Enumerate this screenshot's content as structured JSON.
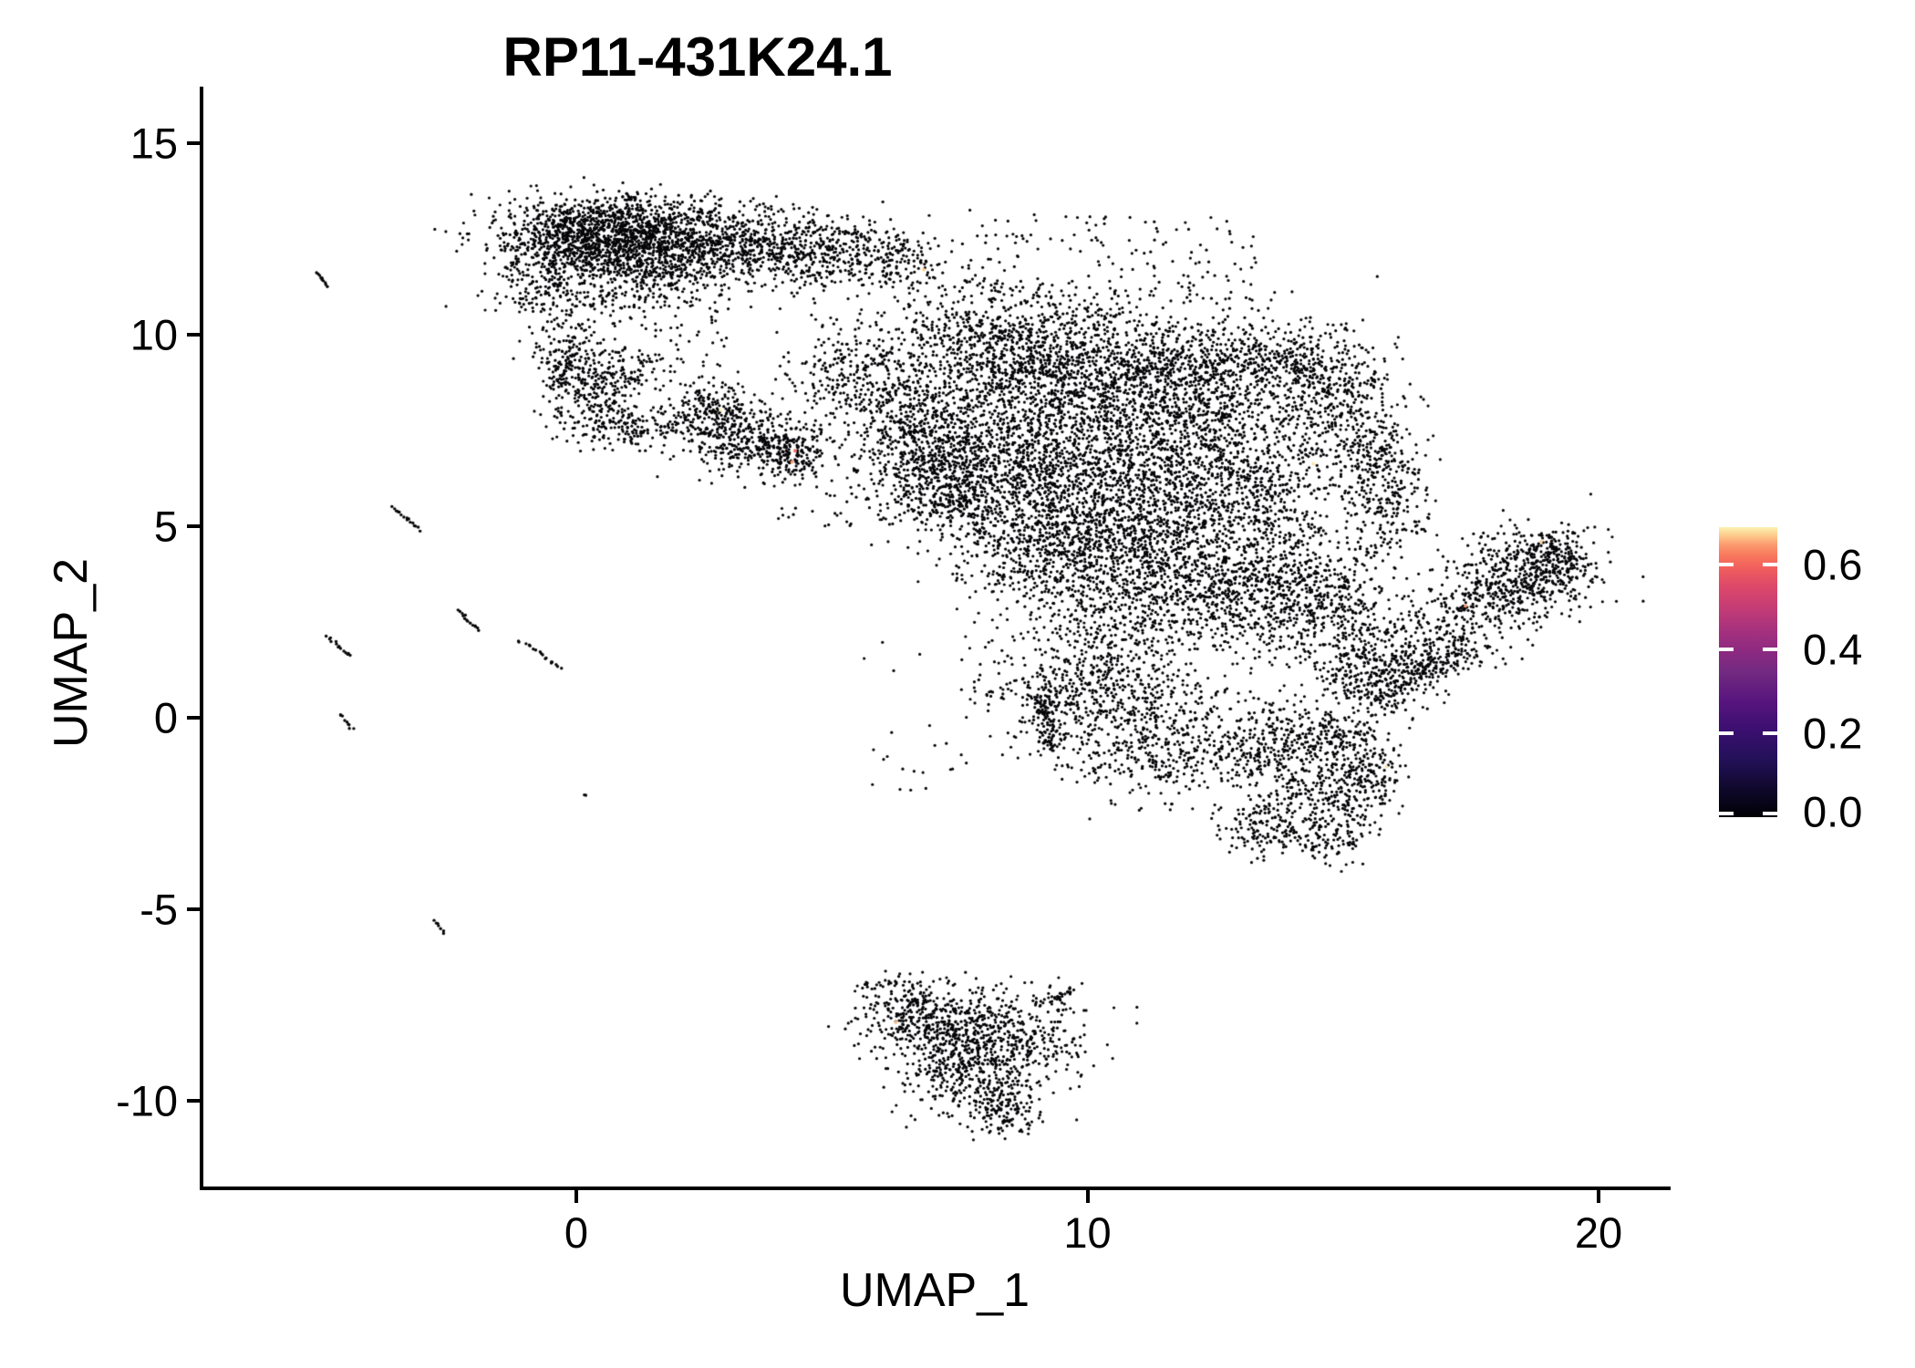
{
  "chart_data": {
    "type": "scatter",
    "title": "RP11-431K24.1",
    "xlabel": "UMAP_1",
    "ylabel": "UMAP_2",
    "xlim": [
      -7.3,
      21.4
    ],
    "ylim": [
      -12.3,
      16.5
    ],
    "xticks": [
      0,
      10,
      20
    ],
    "yticks": [
      15,
      10,
      5,
      0,
      -5,
      -10
    ],
    "grid": false,
    "point_color": "#050508",
    "legend": {
      "position": "right",
      "ticks": [
        0.0,
        0.2,
        0.4,
        0.6
      ],
      "range": [
        0,
        0.69
      ],
      "palette": "magma",
      "palette_stops": [
        "#000004",
        "#140e36",
        "#3b0f70",
        "#641a80",
        "#8c2981",
        "#b73779",
        "#de4968",
        "#f1605d",
        "#fb9b6f",
        "#fdc98a",
        "#fcfdbf"
      ]
    },
    "clusters": [
      {
        "type": "blob",
        "x": 0.3,
        "y": 12.6,
        "sx": 0.9,
        "sy": 0.45,
        "n": 900
      },
      {
        "type": "blob",
        "x": 1.5,
        "y": 12.2,
        "sx": 1.0,
        "sy": 0.5,
        "n": 700
      },
      {
        "type": "blob",
        "x": 1.2,
        "y": 13.2,
        "sx": 1.2,
        "sy": 0.3,
        "n": 220
      },
      {
        "type": "blob",
        "x": -0.6,
        "y": 11.4,
        "sx": 0.45,
        "sy": 0.5,
        "n": 150
      },
      {
        "type": "blob",
        "x": 3.2,
        "y": 12.35,
        "sx": 1.0,
        "sy": 0.45,
        "n": 450
      },
      {
        "type": "blob",
        "x": 4.8,
        "y": 12.1,
        "sx": 0.9,
        "sy": 0.5,
        "n": 350
      },
      {
        "type": "blob",
        "x": 6.3,
        "y": 11.9,
        "sx": 0.55,
        "sy": 0.45,
        "n": 120
      },
      {
        "type": "blob",
        "x": 0.9,
        "y": 11.2,
        "sx": 1.3,
        "sy": 0.5,
        "n": 250
      },
      {
        "type": "box",
        "x1": -0.5,
        "y1": 9.0,
        "x2": 3.0,
        "y2": 11.0,
        "n": 80
      },
      {
        "type": "box",
        "x1": 6.5,
        "y1": 9.5,
        "x2": 8.5,
        "y2": 12.0,
        "n": 70
      },
      {
        "type": "box",
        "x1": 7.7,
        "y1": 10.9,
        "x2": 13.3,
        "y2": 13.2,
        "n": 130
      },
      {
        "type": "blob",
        "x": -0.15,
        "y": 9.3,
        "sx": 0.35,
        "sy": 0.45,
        "n": 160
      },
      {
        "type": "blob",
        "x": 0.35,
        "y": 8.3,
        "sx": 0.45,
        "sy": 0.55,
        "n": 200
      },
      {
        "type": "blob",
        "x": 1.1,
        "y": 7.6,
        "sx": 0.5,
        "sy": 0.3,
        "n": 120
      },
      {
        "type": "blob",
        "x": 0.9,
        "y": 9.0,
        "sx": 0.5,
        "sy": 0.35,
        "n": 90
      },
      {
        "type": "blob",
        "x": 2.6,
        "y": 7.9,
        "sx": 0.45,
        "sy": 0.5,
        "n": 260
      },
      {
        "type": "blob",
        "x": 3.4,
        "y": 7.2,
        "sx": 0.6,
        "sy": 0.45,
        "n": 300
      },
      {
        "type": "blob",
        "x": 4.2,
        "y": 6.8,
        "sx": 0.35,
        "sy": 0.3,
        "n": 120
      },
      {
        "type": "blob",
        "x": 5.6,
        "y": 8.9,
        "sx": 0.7,
        "sy": 0.7,
        "n": 350
      },
      {
        "type": "blob",
        "x": 6.6,
        "y": 7.6,
        "sx": 0.6,
        "sy": 0.6,
        "n": 300
      },
      {
        "type": "blob",
        "x": 7.0,
        "y": 6.3,
        "sx": 0.6,
        "sy": 0.6,
        "n": 250
      },
      {
        "type": "blob",
        "x": 7.5,
        "y": 5.8,
        "sx": 0.5,
        "sy": 0.6,
        "n": 200
      },
      {
        "type": "box",
        "x1": 3.9,
        "y1": 5.0,
        "x2": 7.2,
        "y2": 7.6,
        "n": 120
      },
      {
        "type": "blob",
        "x": 8.3,
        "y": 9.6,
        "sx": 1.1,
        "sy": 0.8,
        "n": 700
      },
      {
        "type": "blob",
        "x": 10.3,
        "y": 9.2,
        "sx": 1.2,
        "sy": 0.9,
        "n": 800
      },
      {
        "type": "blob",
        "x": 12.2,
        "y": 8.8,
        "sx": 1.0,
        "sy": 0.9,
        "n": 650
      },
      {
        "type": "blob",
        "x": 13.8,
        "y": 9.3,
        "sx": 0.8,
        "sy": 0.5,
        "n": 280
      },
      {
        "type": "blob",
        "x": 14.9,
        "y": 8.4,
        "sx": 0.5,
        "sy": 0.8,
        "n": 220
      },
      {
        "type": "blob",
        "x": 15.6,
        "y": 7.0,
        "sx": 0.45,
        "sy": 0.9,
        "n": 220
      },
      {
        "type": "blob",
        "x": 15.9,
        "y": 5.5,
        "sx": 0.4,
        "sy": 0.8,
        "n": 180
      },
      {
        "type": "blob",
        "x": 8.6,
        "y": 7.0,
        "sx": 1.0,
        "sy": 1.0,
        "n": 750
      },
      {
        "type": "blob",
        "x": 10.6,
        "y": 6.4,
        "sx": 1.3,
        "sy": 1.2,
        "n": 1000
      },
      {
        "type": "blob",
        "x": 12.8,
        "y": 6.0,
        "sx": 1.1,
        "sy": 1.1,
        "n": 800
      },
      {
        "type": "blob",
        "x": 9.3,
        "y": 4.6,
        "sx": 1.0,
        "sy": 0.9,
        "n": 600
      },
      {
        "type": "blob",
        "x": 11.2,
        "y": 3.6,
        "sx": 1.2,
        "sy": 1.0,
        "n": 800
      },
      {
        "type": "blob",
        "x": 13.4,
        "y": 3.4,
        "sx": 1.0,
        "sy": 0.9,
        "n": 550
      },
      {
        "type": "blob",
        "x": 14.8,
        "y": 3.0,
        "sx": 0.7,
        "sy": 0.7,
        "n": 250
      },
      {
        "type": "box",
        "x1": 7.5,
        "y1": -1.0,
        "x2": 15.5,
        "y2": 9.5,
        "n": 500
      },
      {
        "type": "blob",
        "x": 10.0,
        "y": 0.9,
        "sx": 0.9,
        "sy": 0.8,
        "n": 450
      },
      {
        "type": "band",
        "x1": 9.15,
        "y1": 0.6,
        "x2": 9.2,
        "y2": -0.9,
        "w": 0.12,
        "n": 100
      },
      {
        "type": "blob",
        "x": 11.3,
        "y": -0.6,
        "sx": 1.0,
        "sy": 0.8,
        "n": 450
      },
      {
        "type": "blob",
        "x": 13.5,
        "y": -0.9,
        "sx": 0.6,
        "sy": 0.6,
        "n": 250
      },
      {
        "type": "blob",
        "x": 14.7,
        "y": -0.5,
        "sx": 0.55,
        "sy": 0.5,
        "n": 200
      },
      {
        "type": "blob",
        "x": 15.5,
        "y": -1.5,
        "sx": 0.35,
        "sy": 0.6,
        "n": 150
      },
      {
        "type": "blob",
        "x": 14.6,
        "y": -2.2,
        "sx": 0.6,
        "sy": 0.45,
        "n": 200
      },
      {
        "type": "blob",
        "x": 13.6,
        "y": -2.9,
        "sx": 0.5,
        "sy": 0.4,
        "n": 150
      },
      {
        "type": "blob",
        "x": 14.9,
        "y": -3.3,
        "sx": 0.3,
        "sy": 0.3,
        "n": 60
      },
      {
        "type": "box",
        "x1": 5.5,
        "y1": -2.0,
        "x2": 8.5,
        "y2": 2.0,
        "n": 25
      },
      {
        "type": "band",
        "x1": 15.4,
        "y1": 0.6,
        "x2": 19.3,
        "y2": 4.5,
        "w": 0.5,
        "n": 650
      },
      {
        "type": "band",
        "x1": 15.3,
        "y1": 0.4,
        "x2": 17.5,
        "y2": 1.9,
        "w": 0.25,
        "n": 200
      },
      {
        "type": "blob",
        "x": 15.3,
        "y": 1.5,
        "sx": 0.5,
        "sy": 0.6,
        "n": 150
      },
      {
        "type": "blob",
        "x": 18.5,
        "y": 3.7,
        "sx": 0.7,
        "sy": 0.6,
        "n": 300
      },
      {
        "type": "blob",
        "x": 19.3,
        "y": 4.3,
        "sx": 0.35,
        "sy": 0.45,
        "n": 110
      },
      {
        "type": "blob",
        "x": 7.0,
        "y": -8.0,
        "sx": 0.7,
        "sy": 0.5,
        "n": 350
      },
      {
        "type": "blob",
        "x": 8.3,
        "y": -8.3,
        "sx": 0.9,
        "sy": 0.6,
        "n": 400
      },
      {
        "type": "blob",
        "x": 7.6,
        "y": -9.3,
        "sx": 0.7,
        "sy": 0.6,
        "n": 350
      },
      {
        "type": "blob",
        "x": 8.4,
        "y": -10.2,
        "sx": 0.35,
        "sy": 0.35,
        "n": 120
      },
      {
        "type": "blob",
        "x": 6.3,
        "y": -7.3,
        "sx": 0.4,
        "sy": 0.3,
        "n": 80
      },
      {
        "type": "band",
        "x1": 8.95,
        "y1": -7.55,
        "x2": 9.75,
        "y2": -7.1,
        "w": 0.06,
        "n": 35
      }
    ],
    "streaks": [
      {
        "x1": -5.07,
        "y1": 11.62,
        "x2": -4.88,
        "y2": 11.28,
        "n": 10
      },
      {
        "x1": -3.58,
        "y1": 5.52,
        "x2": -3.08,
        "y2": 4.9,
        "n": 16
      },
      {
        "x1": -2.3,
        "y1": 2.8,
        "x2": -1.92,
        "y2": 2.28,
        "n": 14
      },
      {
        "x1": -4.85,
        "y1": 2.12,
        "x2": -4.42,
        "y2": 1.6,
        "n": 14
      },
      {
        "x1": -0.98,
        "y1": 1.93,
        "x2": -0.3,
        "y2": 1.28,
        "n": 16
      },
      {
        "x1": -1.13,
        "y1": 2.0,
        "x2": -1.1,
        "y2": 1.97,
        "n": 2
      },
      {
        "x1": -4.62,
        "y1": 0.1,
        "x2": -4.38,
        "y2": -0.3,
        "n": 9
      },
      {
        "x1": -2.78,
        "y1": -5.3,
        "x2": -2.58,
        "y2": -5.6,
        "n": 7
      },
      {
        "x1": 0.18,
        "y1": -2.0,
        "x2": 0.22,
        "y2": -2.02,
        "n": 2
      }
    ],
    "highlights": [
      {
        "x": 6.8,
        "y": 11.7,
        "value": 0.62
      },
      {
        "x": 2.82,
        "y": 8.03,
        "value": 0.68
      },
      {
        "x": 4.28,
        "y": 6.97,
        "value": 0.5
      },
      {
        "x": 4.22,
        "y": 6.68,
        "value": 0.55
      },
      {
        "x": 14.42,
        "y": 6.63,
        "value": 0.66
      },
      {
        "x": 18.88,
        "y": 4.6,
        "value": 0.63
      },
      {
        "x": 17.4,
        "y": 2.92,
        "value": 0.55
      },
      {
        "x": 15.85,
        "y": -1.28,
        "value": 0.66
      },
      {
        "x": 6.25,
        "y": -7.95,
        "value": 0.6
      }
    ]
  }
}
